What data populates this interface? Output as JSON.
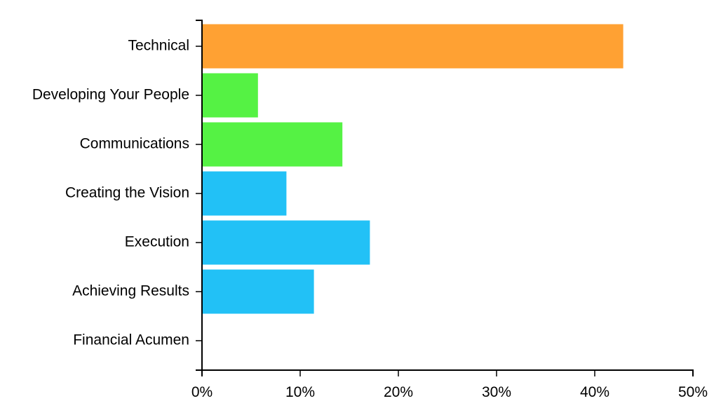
{
  "chart_data": {
    "type": "bar",
    "orientation": "horizontal",
    "categories": [
      "Technical",
      "Developing Your People",
      "Communications",
      "Creating the Vision",
      "Execution",
      "Achieving Results",
      "Financial Acumen"
    ],
    "values": [
      42.9,
      5.7,
      14.3,
      8.6,
      17.1,
      11.4,
      0
    ],
    "bar_colors": [
      "#ffa133",
      "#55f244",
      "#55f244",
      "#22c1f6",
      "#22c1f6",
      "#22c1f6",
      "#22c1f6"
    ],
    "xlim": [
      0,
      50
    ],
    "x_ticks": [
      {
        "value": 0,
        "label": "0%"
      },
      {
        "value": 10,
        "label": "10%"
      },
      {
        "value": 20,
        "label": "20%"
      },
      {
        "value": 30,
        "label": "30%"
      },
      {
        "value": 40,
        "label": "40%"
      },
      {
        "value": 50,
        "label": "50%"
      }
    ],
    "grid": false,
    "legend": "none"
  }
}
